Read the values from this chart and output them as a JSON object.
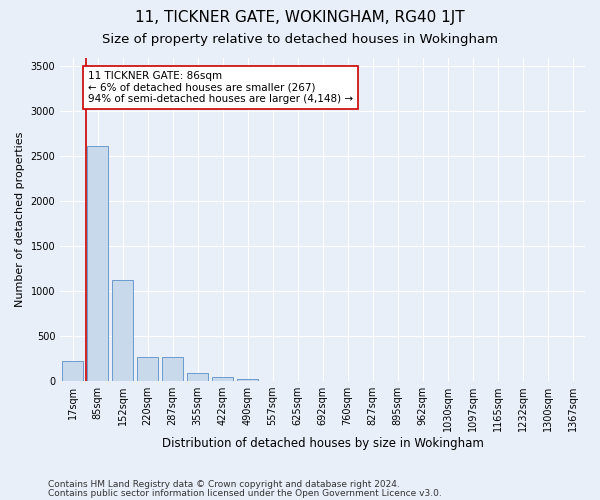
{
  "title1": "11, TICKNER GATE, WOKINGHAM, RG40 1JT",
  "title2": "Size of property relative to detached houses in Wokingham",
  "xlabel": "Distribution of detached houses by size in Wokingham",
  "ylabel": "Number of detached properties",
  "categories": [
    "17sqm",
    "85sqm",
    "152sqm",
    "220sqm",
    "287sqm",
    "355sqm",
    "422sqm",
    "490sqm",
    "557sqm",
    "625sqm",
    "692sqm",
    "760sqm",
    "827sqm",
    "895sqm",
    "962sqm",
    "1030sqm",
    "1097sqm",
    "1165sqm",
    "1232sqm",
    "1300sqm",
    "1367sqm"
  ],
  "values": [
    220,
    2620,
    1130,
    270,
    270,
    95,
    50,
    20,
    0,
    0,
    0,
    0,
    0,
    0,
    0,
    0,
    0,
    0,
    0,
    0,
    0
  ],
  "bar_color": "#c9d9ec",
  "bar_edge_color": "#5b8fc9",
  "property_line_color": "#cc0000",
  "annotation_text": "11 TICKNER GATE: 86sqm\n← 6% of detached houses are smaller (267)\n94% of semi-detached houses are larger (4,148) →",
  "annotation_box_color": "#ffffff",
  "annotation_box_edge": "#cc0000",
  "ylim": [
    0,
    3600
  ],
  "yticks": [
    0,
    500,
    1000,
    1500,
    2000,
    2500,
    3000,
    3500
  ],
  "footer1": "Contains HM Land Registry data © Crown copyright and database right 2024.",
  "footer2": "Contains public sector information licensed under the Open Government Licence v3.0.",
  "bg_color": "#e8eff8",
  "plot_bg_color": "#e8eff8",
  "grid_color": "#ffffff",
  "title1_fontsize": 11,
  "title2_fontsize": 9.5,
  "xlabel_fontsize": 8.5,
  "ylabel_fontsize": 8,
  "tick_fontsize": 7,
  "annotation_fontsize": 7.5,
  "footer_fontsize": 6.5
}
